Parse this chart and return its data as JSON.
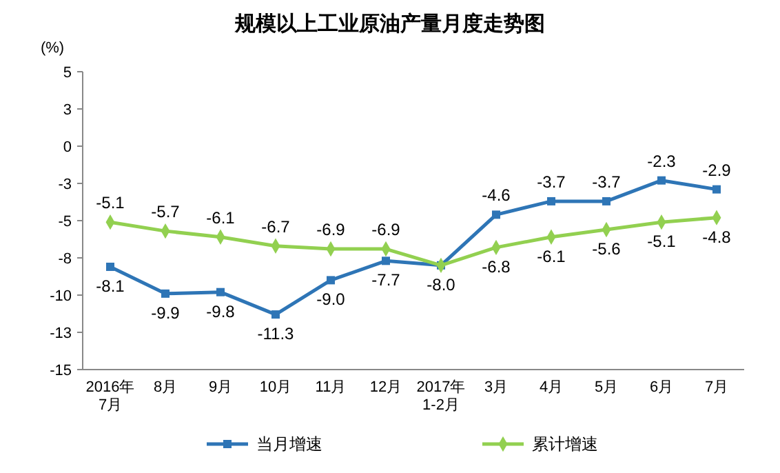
{
  "chart_data": {
    "type": "line",
    "title": "规模以上工业原油产量月度走势图",
    "ylabel": "(%)",
    "categories": [
      "2016年\n7月",
      "8月",
      "9月",
      "10月",
      "11月",
      "12月",
      "2017年\n1-2月",
      "3月",
      "4月",
      "5月",
      "6月",
      "7月"
    ],
    "series": [
      {
        "name": "当月增速",
        "color": "#2e75b6",
        "marker": "square",
        "values": [
          -8.1,
          -9.9,
          -9.8,
          -11.3,
          -9.0,
          -7.7,
          -8.0,
          -4.6,
          -3.7,
          -3.7,
          -2.3,
          -2.9
        ],
        "value_labels": [
          "-8.1",
          "-9.9",
          "-9.8",
          "-11.3",
          "-9.0",
          "-7.7",
          "-8.0",
          "-4.6",
          "-3.7",
          "-3.7",
          "-2.3",
          "-2.9"
        ]
      },
      {
        "name": "累计增速",
        "color": "#92d050",
        "marker": "diamond",
        "values": [
          -5.1,
          -5.7,
          -6.1,
          -6.7,
          -6.9,
          -6.9,
          -8.0,
          -6.8,
          -6.1,
          -5.6,
          -5.1,
          -4.8
        ],
        "value_labels": [
          "-5.1",
          "-5.7",
          "-6.1",
          "-6.7",
          "-6.9",
          "-6.9",
          null,
          "-6.8",
          "-6.1",
          "-5.6",
          "-5.1",
          "-4.8"
        ]
      }
    ],
    "ylim": [
      -15,
      5
    ],
    "yticks": [
      5,
      {
        "value": 2.5,
        "label": "3"
      },
      0,
      {
        "value": -2.5,
        "label": "-3"
      },
      -5,
      {
        "value": -7.5,
        "label": "-8"
      },
      -10,
      {
        "value": -12.5,
        "label": "-13"
      },
      -15
    ],
    "legend": "bottom",
    "grid": false
  }
}
